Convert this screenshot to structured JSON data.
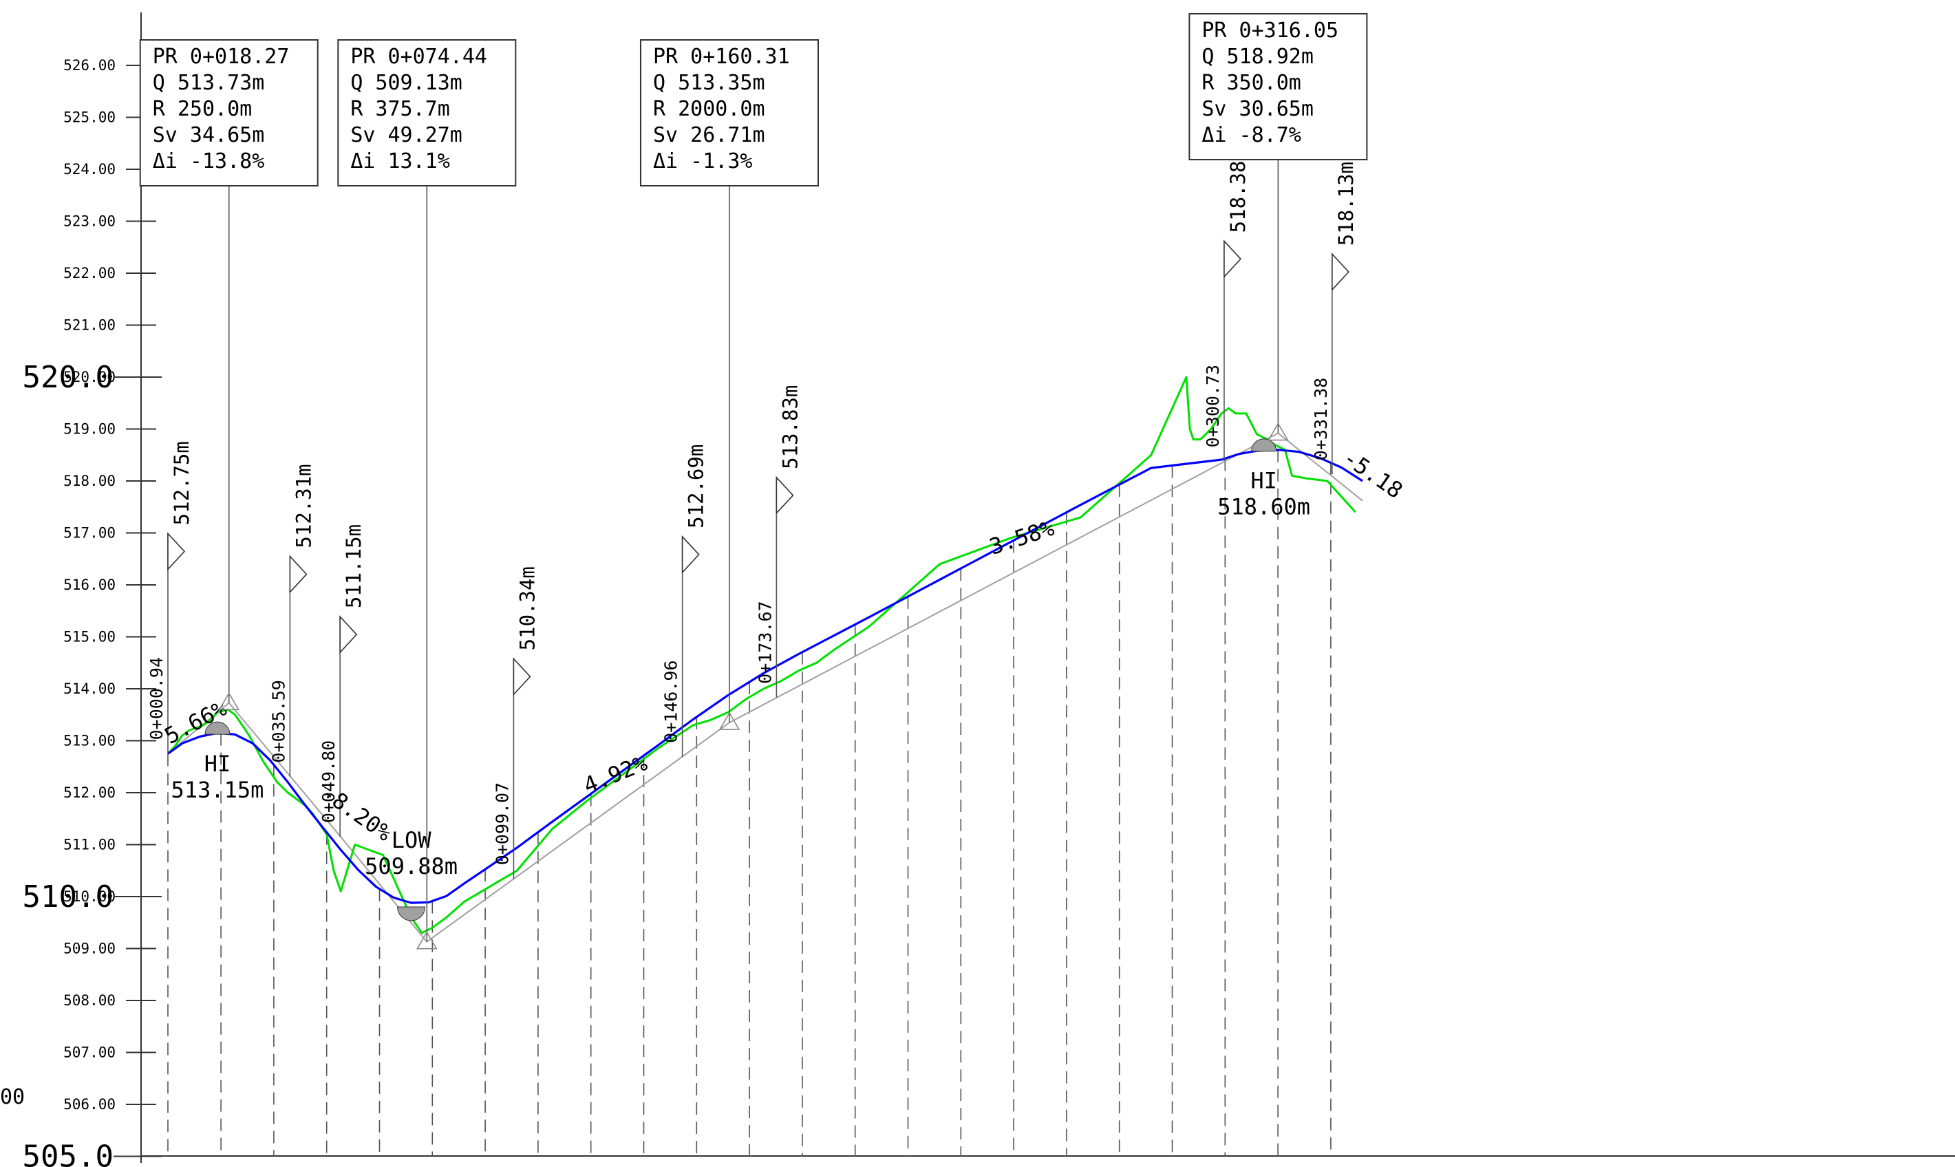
{
  "colors": {
    "design_line": "#0000ff",
    "ground_line": "#00e000",
    "tangent_line": "#a0a0a0",
    "station_line": "#555555",
    "axis": "#333333"
  },
  "axis": {
    "ymin": 505.0,
    "ymax": 527.0,
    "ticks": [
      "506.00",
      "507.00",
      "508.00",
      "509.00",
      "510.00",
      "511.00",
      "512.00",
      "513.00",
      "514.00",
      "515.00",
      "516.00",
      "517.00",
      "518.00",
      "519.00",
      "520.00",
      "521.00",
      "522.00",
      "523.00",
      "524.00",
      "525.00",
      "526.00"
    ],
    "major_labels": [
      {
        "value": 520,
        "text": "520.0"
      },
      {
        "value": 510,
        "text": "510.0"
      },
      {
        "value": 505,
        "text": "505.0"
      }
    ],
    "edge_fragment": "00"
  },
  "chart_data": {
    "type": "line",
    "x_unit": "station (m)",
    "y_unit": "elevation (m)",
    "ylim": [
      505,
      527
    ],
    "series": [
      {
        "key": "design",
        "x": [
          0.94,
          5,
          10,
          15,
          20,
          25,
          30,
          35,
          40,
          45,
          50,
          55,
          60,
          65,
          70,
          75,
          80,
          85,
          90,
          95,
          100,
          110,
          120,
          130,
          140,
          150,
          160,
          170,
          180,
          200,
          220,
          240,
          260,
          280,
          300,
          305,
          310,
          316,
          322,
          328,
          334,
          340
        ],
        "y": [
          512.75,
          512.95,
          513.08,
          513.15,
          513.12,
          512.95,
          512.62,
          512.2,
          511.75,
          511.32,
          510.9,
          510.51,
          510.19,
          509.98,
          509.88,
          509.89,
          510.01,
          510.25,
          510.48,
          510.71,
          510.94,
          511.44,
          511.93,
          512.42,
          512.91,
          513.41,
          513.88,
          514.3,
          514.67,
          515.38,
          516.1,
          516.82,
          517.54,
          518.25,
          518.41,
          518.52,
          518.58,
          518.6,
          518.56,
          518.44,
          518.26,
          518.0
        ]
      },
      {
        "key": "ground",
        "x": [
          0.94,
          3,
          5,
          7,
          9,
          11,
          13,
          15,
          18,
          20,
          24,
          28,
          32,
          35,
          40,
          42,
          44,
          46,
          48,
          50,
          54,
          58,
          62,
          66,
          70,
          73,
          76,
          80,
          85,
          90,
          95,
          100,
          105,
          110,
          120,
          130,
          140,
          150,
          155,
          160,
          165,
          170,
          175,
          180,
          185,
          190,
          200,
          210,
          220,
          240,
          260,
          280,
          290,
          291,
          292,
          293,
          294,
          297,
          300,
          302,
          304,
          307,
          310,
          313,
          315,
          318,
          320,
          324,
          330,
          338
        ],
        "y": [
          512.75,
          512.9,
          513.1,
          513.2,
          513.25,
          513.3,
          513.4,
          513.55,
          513.6,
          513.5,
          513.1,
          512.6,
          512.2,
          512.0,
          511.75,
          511.6,
          511.4,
          511.2,
          510.5,
          510.1,
          511.0,
          510.9,
          510.8,
          510.2,
          509.6,
          509.3,
          509.4,
          509.6,
          509.9,
          510.1,
          510.3,
          510.5,
          510.9,
          511.3,
          511.85,
          512.35,
          512.85,
          513.3,
          513.4,
          513.55,
          513.8,
          514.0,
          514.15,
          514.35,
          514.5,
          514.75,
          515.2,
          515.8,
          516.4,
          516.9,
          517.3,
          518.5,
          520.0,
          519.0,
          518.8,
          518.8,
          518.8,
          519.0,
          519.3,
          519.4,
          519.3,
          519.3,
          518.9,
          518.8,
          518.7,
          518.6,
          518.1,
          518.05,
          518.0,
          517.4
        ]
      },
      {
        "key": "tangents",
        "x": [
          0.94,
          18.27,
          50,
          74.44,
          99.07,
          160.31,
          316.05,
          340
        ],
        "y": [
          512.75,
          513.73,
          511.15,
          509.13,
          510.34,
          513.35,
          518.92,
          517.62
        ]
      }
    ]
  },
  "vertical_curves": [
    {
      "station": 18.27,
      "lines": [
        "PR 0+018.27",
        "Q  513.73m",
        "R  250.0m",
        "Sv 34.65m",
        "Δi -13.8%"
      ]
    },
    {
      "station": 74.44,
      "lines": [
        "PR 0+074.44",
        "Q  509.13m",
        "R  375.7m",
        "Sv 49.27m",
        "Δi 13.1%"
      ]
    },
    {
      "station": 160.31,
      "lines": [
        "PR 0+160.31",
        "Q  513.35m",
        "R  2000.0m",
        "Sv 26.71m",
        "Δi -1.3%"
      ]
    },
    {
      "station": 316.05,
      "lines": [
        "PR 0+316.05",
        "Q  518.92m",
        "R  350.0m",
        "Sv 30.65m",
        "Δi -8.7%"
      ]
    }
  ],
  "station_points": [
    {
      "station": 0.94,
      "station_label": "0+000.94",
      "elevation_label": "512.75m",
      "elevation": 512.75
    },
    {
      "station": 35.59,
      "station_label": "0+035.59",
      "elevation_label": "512.31m",
      "elevation": 512.31
    },
    {
      "station": 49.8,
      "station_label": "0+049.80",
      "elevation_label": "511.15m",
      "elevation": 511.15
    },
    {
      "station": 99.07,
      "station_label": "0+099.07",
      "elevation_label": "510.34m",
      "elevation": 510.34
    },
    {
      "station": 146.96,
      "station_label": "0+146.96",
      "elevation_label": "512.69m",
      "elevation": 512.69
    },
    {
      "station": 173.67,
      "station_label": "0+173.67",
      "elevation_label": "513.83m",
      "elevation": 513.83
    },
    {
      "station": 300.73,
      "station_label": "0+300.73",
      "elevation_label": "518.38m",
      "elevation": 518.38
    },
    {
      "station": 331.38,
      "station_label": "0+331.38",
      "elevation_label": "518.13m",
      "elevation": 518.13
    }
  ],
  "extremes": [
    {
      "label": "HI",
      "value": "513.15m",
      "station": 15.0,
      "elevation": 513.15
    },
    {
      "label": "LOW",
      "value": "509.88m",
      "station": 70.0,
      "elevation": 509.88
    },
    {
      "label": "HI",
      "value": "518.60m",
      "station": 312.0,
      "elevation": 518.6
    }
  ],
  "grades": [
    {
      "text": "5.66%",
      "station": 1.5,
      "elevation": 512.85
    },
    {
      "text": "-8.20%",
      "station": 44.0,
      "elevation": 511.85
    },
    {
      "text": "4.92%",
      "station": 120.0,
      "elevation": 511.9
    },
    {
      "text": "3.58%",
      "station": 235.0,
      "elevation": 516.5
    },
    {
      "text": "-5.18",
      "station": 334.0,
      "elevation": 518.3
    }
  ],
  "grid_stations": [
    0.94,
    16,
    31,
    46,
    61,
    76,
    91,
    106,
    121,
    136,
    151,
    166,
    181,
    196,
    211,
    226,
    241,
    256,
    271,
    286,
    301,
    316,
    331
  ]
}
